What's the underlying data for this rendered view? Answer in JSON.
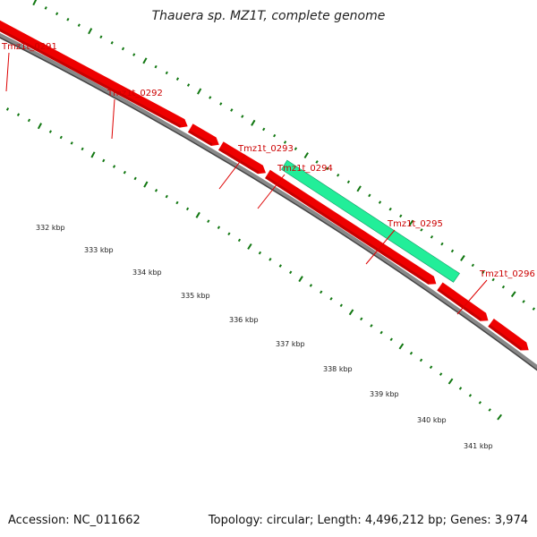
{
  "title": "Thauera sp. MZ1T, complete genome",
  "footer": {
    "accession": "Accession: NC_011662",
    "summary": "Topology: circular; Length: 4,496,212 bp; Genes: 3,974"
  },
  "colors": {
    "gene": "#ee0000",
    "highlight": "#22ee99",
    "backbone": "#888888",
    "ticks": "#117711",
    "label": "#cc0000"
  },
  "genes": [
    {
      "id": "Tmz1t_0291",
      "highlight": false
    },
    {
      "id": "Tmz1t_0292",
      "highlight": false
    },
    {
      "id": "Tmz1t_0293",
      "highlight": false
    },
    {
      "id": "Tmz1t_0294",
      "highlight": false
    },
    {
      "id": "Tmz1t_0295",
      "highlight": true
    },
    {
      "id": "Tmz1t_0296",
      "highlight": false
    }
  ],
  "scale": {
    "unit": "kbp",
    "labels": [
      "332 kbp",
      "333 kbp",
      "334 kbp",
      "335 kbp",
      "336 kbp",
      "337 kbp",
      "338 kbp",
      "339 kbp",
      "340 kbp",
      "341 kbp"
    ]
  }
}
